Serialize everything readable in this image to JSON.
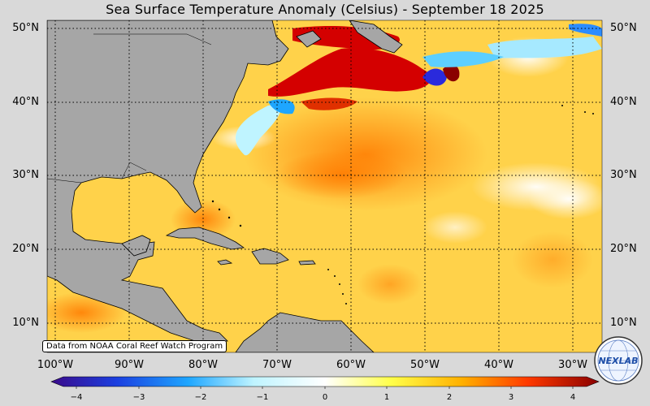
{
  "title": "Sea Surface Temperature Anomaly (Celsius) - September 18 2025",
  "map": {
    "lat_labels": [
      "50°N",
      "40°N",
      "30°N",
      "20°N",
      "10°N"
    ],
    "lon_labels": [
      "100°W",
      "90°W",
      "80°W",
      "70°W",
      "60°W",
      "50°W",
      "40°W",
      "30°W"
    ],
    "ocean_base_color": "#ffd24a",
    "land_color": "#a6a6a6",
    "grid_style": "dotted"
  },
  "credit": "Data from NOAA Coral Reef Watch Program",
  "colorbar": {
    "ticks": [
      "−4",
      "−3",
      "−2",
      "−1",
      "0",
      "1",
      "2",
      "3",
      "4"
    ],
    "range": [
      -4,
      4
    ],
    "stops": [
      "#3a0a8a",
      "#1b3fe0",
      "#1ea6ff",
      "#bff4ff",
      "#ffffff",
      "#ffff4a",
      "#ffb000",
      "#ff3a00",
      "#8a0000"
    ]
  },
  "logo": {
    "text": "NEXLAB",
    "icon": "nexlab-globe-logo"
  }
}
